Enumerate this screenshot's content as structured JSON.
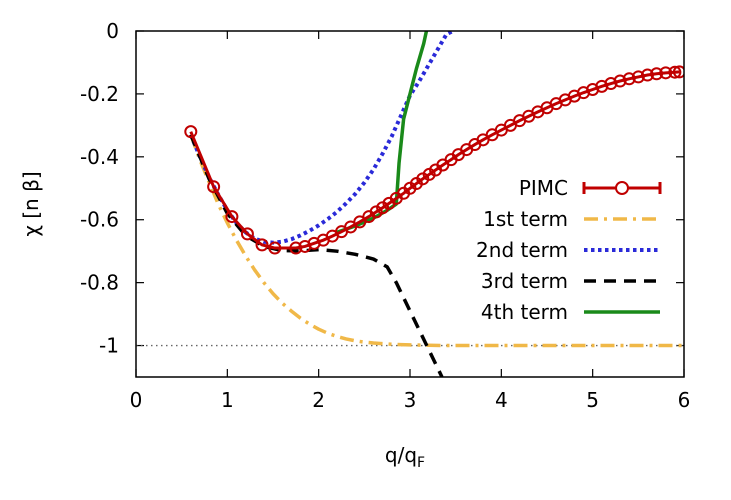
{
  "chart_data": {
    "type": "line",
    "title": "",
    "xlabel": "q/q",
    "xlabel_sub": "F",
    "ylabel": "χ [n β]",
    "xlim": [
      0,
      6
    ],
    "ylim": [
      -1.1,
      0
    ],
    "x_ticks": [
      0,
      1,
      2,
      3,
      4,
      5,
      6
    ],
    "y_ticks": [
      0,
      -0.2,
      -0.4,
      -0.6,
      -0.8,
      -1
    ],
    "x_tick_labels": [
      "0",
      "1",
      "2",
      "3",
      "4",
      "5",
      "6"
    ],
    "y_tick_labels": [
      "0",
      "-0.2",
      "-0.4",
      "-0.6",
      "-0.8",
      "-1"
    ],
    "grid": false,
    "legend_position": "right",
    "reference_line": {
      "y": -1,
      "style": "dotted",
      "color": "#666666"
    },
    "series": [
      {
        "name": "PIMC",
        "style": "circles-with-errorbar",
        "color": "#c00000",
        "x": [
          0.6,
          0.85,
          1.05,
          1.22,
          1.38,
          1.52,
          1.75,
          1.85,
          1.95,
          2.05,
          2.15,
          2.25,
          2.35,
          2.45,
          2.55,
          2.63,
          2.7,
          2.77,
          2.85,
          2.93,
          3.0,
          3.07,
          3.14,
          3.21,
          3.28,
          3.36,
          3.45,
          3.53,
          3.62,
          3.71,
          3.8,
          3.9,
          4.0,
          4.1,
          4.2,
          4.3,
          4.4,
          4.5,
          4.6,
          4.7,
          4.8,
          4.9,
          5.0,
          5.1,
          5.2,
          5.3,
          5.4,
          5.5,
          5.6,
          5.7,
          5.8,
          5.9,
          5.95
        ],
        "y": [
          -0.32,
          -0.495,
          -0.59,
          -0.645,
          -0.68,
          -0.69,
          -0.69,
          -0.685,
          -0.675,
          -0.665,
          -0.652,
          -0.638,
          -0.623,
          -0.607,
          -0.59,
          -0.575,
          -0.562,
          -0.548,
          -0.532,
          -0.516,
          -0.5,
          -0.485,
          -0.47,
          -0.456,
          -0.442,
          -0.426,
          -0.409,
          -0.393,
          -0.377,
          -0.361,
          -0.346,
          -0.33,
          -0.315,
          -0.3,
          -0.285,
          -0.271,
          -0.257,
          -0.244,
          -0.231,
          -0.219,
          -0.207,
          -0.196,
          -0.186,
          -0.176,
          -0.167,
          -0.159,
          -0.152,
          -0.146,
          -0.14,
          -0.136,
          -0.133,
          -0.131,
          -0.13
        ]
      },
      {
        "name": "1st term",
        "style": "dash-dot",
        "color": "#f0b848",
        "x": [
          0.6,
          0.7,
          0.8,
          0.9,
          1.0,
          1.1,
          1.2,
          1.3,
          1.4,
          1.5,
          1.6,
          1.7,
          1.8,
          1.9,
          2.0,
          2.1,
          2.2,
          2.3,
          2.4,
          2.5,
          2.6,
          2.7,
          2.8,
          2.9,
          3.0,
          3.2,
          3.4,
          3.6,
          3.8,
          4.0,
          4.5,
          5.0,
          5.5,
          6.0
        ],
        "y": [
          -0.33,
          -0.41,
          -0.48,
          -0.55,
          -0.61,
          -0.665,
          -0.715,
          -0.76,
          -0.8,
          -0.835,
          -0.865,
          -0.89,
          -0.913,
          -0.932,
          -0.948,
          -0.961,
          -0.971,
          -0.979,
          -0.985,
          -0.989,
          -0.992,
          -0.994,
          -0.996,
          -0.997,
          -0.998,
          -0.999,
          -1.0,
          -1.0,
          -1.0,
          -1.0,
          -1.0,
          -1.0,
          -1.0,
          -1.0
        ]
      },
      {
        "name": "2nd term",
        "style": "dotted",
        "color": "#2a2ad8",
        "x": [
          0.6,
          0.7,
          0.8,
          0.9,
          1.0,
          1.1,
          1.2,
          1.3,
          1.4,
          1.5,
          1.6,
          1.7,
          1.8,
          1.9,
          2.0,
          2.1,
          2.2,
          2.3,
          2.4,
          2.5,
          2.6,
          2.7,
          2.8,
          2.9,
          3.0,
          3.1,
          3.2,
          3.3,
          3.4,
          3.47
        ],
        "y": [
          -0.33,
          -0.4,
          -0.465,
          -0.52,
          -0.57,
          -0.61,
          -0.64,
          -0.66,
          -0.67,
          -0.673,
          -0.67,
          -0.662,
          -0.65,
          -0.635,
          -0.618,
          -0.598,
          -0.575,
          -0.548,
          -0.518,
          -0.482,
          -0.44,
          -0.39,
          -0.335,
          -0.27,
          -0.205,
          -0.16,
          -0.11,
          -0.06,
          -0.01,
          0.0
        ]
      },
      {
        "name": "3rd term",
        "style": "dashed",
        "color": "#000000",
        "x": [
          0.6,
          0.8,
          1.0,
          1.2,
          1.4,
          1.6,
          1.8,
          2.0,
          2.2,
          2.4,
          2.6,
          2.75,
          2.85,
          2.95,
          3.05,
          3.15,
          3.25,
          3.35
        ],
        "y": [
          -0.33,
          -0.47,
          -0.58,
          -0.65,
          -0.685,
          -0.698,
          -0.699,
          -0.695,
          -0.7,
          -0.71,
          -0.725,
          -0.75,
          -0.8,
          -0.86,
          -0.92,
          -0.98,
          -1.04,
          -1.1
        ]
      },
      {
        "name": "4th term",
        "style": "solid",
        "color": "#1a8a1a",
        "x": [
          2.2,
          2.4,
          2.6,
          2.75,
          2.85,
          2.88,
          2.93,
          3.0,
          3.07,
          3.15,
          3.18
        ],
        "y": [
          -0.64,
          -0.62,
          -0.595,
          -0.57,
          -0.55,
          -0.42,
          -0.28,
          -0.2,
          -0.12,
          -0.04,
          0.0
        ]
      }
    ]
  }
}
